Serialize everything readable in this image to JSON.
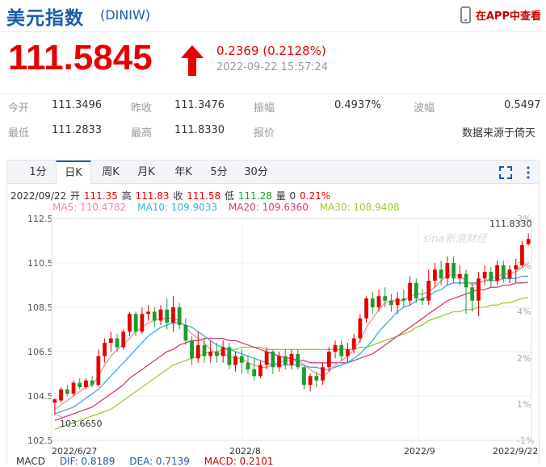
{
  "header": {
    "title": "美元指数",
    "code": "(DINIW)",
    "app_link": "在APP中查看"
  },
  "quote": {
    "price": "111.5845",
    "change": "0.2369 (0.2128%)",
    "datetime": "2022-09-22 15:57:24"
  },
  "stats": {
    "row1": [
      {
        "label": "今开",
        "value": "111.3496"
      },
      {
        "label": "昨收",
        "value": "111.3476"
      },
      {
        "label": "振幅",
        "value": "0.4937%"
      },
      {
        "label": "波幅",
        "value": "0.5497"
      }
    ],
    "row2": [
      {
        "label": "最低",
        "value": "111.2833"
      },
      {
        "label": "最高",
        "value": "111.8330"
      },
      {
        "label": "报价",
        "value": "数据来源于倚天"
      }
    ]
  },
  "tabs": [
    "1分",
    "日K",
    "周K",
    "月K",
    "年K",
    "5分",
    "30分"
  ],
  "active_tab": "日K",
  "ohlc": {
    "date": "2022/09/22",
    "open_label": "开",
    "open": "111.35",
    "high_label": "高",
    "high": "111.83",
    "close_label": "收",
    "close": "111.58",
    "low_label": "低",
    "low": "111.28",
    "vol_label": "量",
    "vol": "0",
    "pct": "0.21%"
  },
  "ma": {
    "ma5": "MA5: 110.4782",
    "ma10": "MA10: 109.9033",
    "ma20": "MA20: 109.6360",
    "ma30": "MA30: 108.9408"
  },
  "macd": {
    "label": "MACD",
    "dif": "DIF: 0.8189",
    "dea": "DEA: 0.7139",
    "macd": "MACD: 0.2101"
  },
  "watermark": "sina新浪财经",
  "colors": {
    "up": "#e60000",
    "down": "#1a9e2c",
    "ma5": "#f08ca0",
    "ma10": "#3ab0d8",
    "ma20": "#d63c78",
    "ma30": "#9acd32",
    "brand": "#1a5ca8"
  },
  "chart_data": {
    "type": "candlestick",
    "ylim": [
      102.5,
      112.5
    ],
    "y_ticks": [
      "112.5",
      "110.5",
      "108.5",
      "106.5",
      "104.5",
      "102.5"
    ],
    "pct_ticks": [
      "3%",
      "2%",
      "4%",
      "2%",
      "1%",
      "-1%"
    ],
    "x_labels": [
      "2022/6/27",
      "2022/8",
      "2022/9",
      "2022/9/22"
    ],
    "max_label": "111.8330",
    "min_label": "103.6650",
    "candles": [
      [
        104.2,
        104.35,
        103.67,
        104.4
      ],
      [
        104.3,
        104.8,
        104.2,
        104.9
      ],
      [
        104.8,
        104.6,
        104.5,
        105.0
      ],
      [
        104.6,
        105.1,
        104.5,
        105.2
      ],
      [
        105.1,
        104.9,
        104.8,
        105.3
      ],
      [
        104.9,
        105.2,
        104.8,
        105.3
      ],
      [
        105.2,
        105.0,
        104.9,
        105.4
      ],
      [
        105.0,
        106.3,
        104.9,
        106.6
      ],
      [
        106.3,
        106.9,
        106.0,
        107.1
      ],
      [
        106.9,
        107.1,
        106.5,
        107.4
      ],
      [
        107.1,
        106.7,
        106.5,
        107.3
      ],
      [
        106.7,
        107.4,
        106.6,
        107.5
      ],
      [
        107.4,
        108.2,
        107.2,
        108.3
      ],
      [
        108.2,
        107.4,
        107.2,
        108.3
      ],
      [
        107.4,
        108.2,
        107.3,
        108.5
      ],
      [
        108.2,
        108.3,
        107.9,
        108.6
      ],
      [
        108.3,
        107.9,
        107.6,
        108.5
      ],
      [
        107.9,
        108.4,
        107.7,
        108.6
      ],
      [
        108.4,
        107.8,
        107.5,
        108.9
      ],
      [
        107.8,
        108.5,
        107.4,
        109.0
      ],
      [
        108.5,
        107.7,
        107.5,
        108.7
      ],
      [
        107.7,
        107.0,
        106.8,
        108.0
      ],
      [
        107.0,
        106.2,
        105.9,
        107.2
      ],
      [
        106.2,
        106.8,
        106.0,
        107.4
      ],
      [
        106.8,
        106.3,
        106.0,
        107.1
      ],
      [
        106.3,
        106.5,
        106.0,
        107.0
      ],
      [
        106.5,
        106.3,
        106.0,
        106.9
      ],
      [
        106.3,
        106.7,
        106.0,
        107.0
      ],
      [
        106.7,
        105.9,
        105.7,
        106.9
      ],
      [
        105.9,
        106.3,
        105.6,
        106.5
      ],
      [
        106.3,
        106.0,
        105.5,
        106.6
      ],
      [
        106.0,
        105.7,
        105.5,
        106.3
      ],
      [
        105.7,
        105.4,
        105.2,
        106.2
      ],
      [
        105.4,
        105.9,
        105.3,
        106.1
      ],
      [
        105.9,
        106.5,
        105.7,
        106.7
      ],
      [
        106.5,
        105.8,
        105.5,
        106.6
      ],
      [
        105.8,
        106.3,
        105.6,
        106.5
      ],
      [
        106.3,
        105.9,
        105.7,
        106.6
      ],
      [
        105.9,
        106.4,
        105.7,
        106.6
      ],
      [
        106.4,
        105.8,
        105.7,
        106.6
      ],
      [
        105.8,
        105.0,
        104.8,
        105.9
      ],
      [
        105.0,
        105.4,
        104.7,
        105.5
      ],
      [
        105.4,
        105.2,
        104.9,
        105.6
      ],
      [
        105.2,
        105.8,
        105.0,
        106.0
      ],
      [
        105.8,
        106.5,
        105.6,
        106.7
      ],
      [
        106.5,
        106.8,
        106.2,
        107.0
      ],
      [
        106.8,
        106.3,
        106.1,
        107.0
      ],
      [
        106.3,
        106.6,
        106.0,
        106.9
      ],
      [
        106.6,
        107.1,
        106.4,
        107.3
      ],
      [
        107.1,
        108.0,
        106.9,
        108.2
      ],
      [
        108.0,
        108.9,
        107.8,
        109.0
      ],
      [
        108.9,
        108.5,
        108.2,
        109.2
      ],
      [
        108.5,
        109.0,
        108.3,
        109.3
      ],
      [
        109.0,
        108.8,
        108.5,
        109.4
      ],
      [
        108.8,
        108.6,
        108.3,
        109.1
      ],
      [
        108.6,
        108.9,
        108.2,
        109.2
      ],
      [
        108.9,
        108.8,
        108.5,
        109.3
      ],
      [
        108.8,
        109.6,
        108.6,
        109.9
      ],
      [
        109.6,
        108.9,
        108.7,
        109.8
      ],
      [
        108.9,
        108.8,
        108.6,
        109.3
      ],
      [
        108.8,
        109.7,
        108.6,
        110.2
      ],
      [
        109.7,
        110.2,
        109.4,
        110.5
      ],
      [
        110.2,
        109.8,
        109.5,
        110.6
      ],
      [
        109.8,
        110.5,
        109.5,
        110.8
      ],
      [
        110.5,
        109.8,
        109.6,
        110.8
      ],
      [
        109.8,
        110.0,
        109.5,
        110.4
      ],
      [
        110.0,
        109.4,
        108.2,
        110.2
      ],
      [
        109.4,
        108.8,
        108.3,
        109.6
      ],
      [
        108.8,
        109.8,
        108.1,
        110.1
      ],
      [
        109.8,
        110.1,
        109.5,
        110.4
      ],
      [
        110.1,
        109.7,
        109.4,
        110.3
      ],
      [
        109.7,
        110.4,
        109.5,
        110.6
      ],
      [
        110.4,
        109.8,
        109.6,
        110.6
      ],
      [
        109.8,
        110.2,
        109.6,
        110.4
      ],
      [
        110.2,
        110.4,
        109.6,
        110.7
      ],
      [
        110.4,
        111.3,
        110.3,
        111.5
      ],
      [
        111.35,
        111.58,
        111.28,
        111.83
      ]
    ],
    "ma5": [
      103.9,
      104.1,
      104.3,
      104.5,
      104.7,
      104.9,
      105.0,
      105.4,
      105.9,
      106.3,
      106.6,
      106.8,
      107.1,
      107.4,
      107.6,
      107.8,
      107.9,
      108.0,
      108.0,
      108.0,
      107.9,
      107.6,
      107.3,
      107.1,
      106.9,
      106.6,
      106.4,
      106.4,
      106.3,
      106.2,
      106.2,
      106.0,
      105.9,
      105.8,
      105.8,
      105.9,
      106.0,
      106.1,
      106.1,
      106.1,
      105.9,
      105.7,
      105.5,
      105.4,
      105.6,
      105.9,
      106.1,
      106.3,
      106.6,
      107.0,
      107.6,
      108.0,
      108.4,
      108.7,
      108.8,
      108.8,
      108.8,
      109.0,
      109.1,
      109.1,
      109.2,
      109.4,
      109.7,
      109.9,
      110.0,
      109.9,
      109.7,
      109.5,
      109.6,
      109.7,
      109.8,
      109.9,
      110.0,
      110.0,
      110.1,
      110.3,
      110.48
    ],
    "ma10": [
      103.7,
      103.8,
      103.9,
      104.0,
      104.2,
      104.4,
      104.6,
      104.8,
      105.1,
      105.4,
      105.7,
      106.0,
      106.3,
      106.6,
      106.9,
      107.2,
      107.4,
      107.6,
      107.7,
      107.8,
      107.8,
      107.7,
      107.6,
      107.4,
      107.2,
      107.0,
      106.8,
      106.7,
      106.6,
      106.5,
      106.4,
      106.3,
      106.2,
      106.1,
      106.0,
      105.9,
      105.9,
      105.9,
      105.9,
      105.9,
      105.9,
      105.8,
      105.8,
      105.7,
      105.7,
      105.8,
      105.9,
      106.0,
      106.2,
      106.4,
      106.7,
      107.0,
      107.4,
      107.7,
      108.0,
      108.3,
      108.5,
      108.6,
      108.8,
      108.9,
      109.0,
      109.2,
      109.3,
      109.5,
      109.6,
      109.6,
      109.6,
      109.6,
      109.6,
      109.7,
      109.7,
      109.7,
      109.8,
      109.8,
      109.8,
      109.9,
      109.9033
    ],
    "ma20": [
      103.4,
      103.5,
      103.6,
      103.7,
      103.8,
      103.9,
      104.0,
      104.2,
      104.4,
      104.6,
      104.8,
      105.0,
      105.3,
      105.5,
      105.7,
      105.9,
      106.1,
      106.3,
      106.5,
      106.6,
      106.8,
      106.9,
      107.0,
      107.0,
      107.1,
      107.1,
      107.1,
      107.1,
      107.0,
      107.0,
      106.9,
      106.8,
      106.7,
      106.6,
      106.5,
      106.4,
      106.3,
      106.2,
      106.2,
      106.1,
      106.1,
      106.0,
      106.0,
      106.0,
      106.0,
      106.0,
      106.0,
      106.0,
      106.1,
      106.2,
      106.3,
      106.4,
      106.6,
      106.8,
      107.0,
      107.2,
      107.4,
      107.6,
      107.8,
      108.0,
      108.2,
      108.4,
      108.6,
      108.8,
      108.9,
      109.0,
      109.1,
      109.2,
      109.3,
      109.3,
      109.4,
      109.4,
      109.5,
      109.5,
      109.6,
      109.6,
      109.636
    ],
    "ma30": [
      103.0,
      103.1,
      103.2,
      103.3,
      103.4,
      103.5,
      103.6,
      103.7,
      103.8,
      103.9,
      104.1,
      104.3,
      104.5,
      104.7,
      104.9,
      105.1,
      105.3,
      105.5,
      105.7,
      105.9,
      106.0,
      106.1,
      106.2,
      106.3,
      106.4,
      106.5,
      106.5,
      106.6,
      106.6,
      106.6,
      106.7,
      106.7,
      106.7,
      106.7,
      106.6,
      106.6,
      106.6,
      106.6,
      106.6,
      106.6,
      106.6,
      106.6,
      106.6,
      106.6,
      106.6,
      106.6,
      106.6,
      106.6,
      106.6,
      106.7,
      106.7,
      106.8,
      106.9,
      107.0,
      107.1,
      107.2,
      107.3,
      107.4,
      107.6,
      107.7,
      107.9,
      108.0,
      108.1,
      108.2,
      108.3,
      108.3,
      108.4,
      108.4,
      108.5,
      108.5,
      108.6,
      108.6,
      108.7,
      108.7,
      108.8,
      108.9,
      108.9408
    ]
  }
}
